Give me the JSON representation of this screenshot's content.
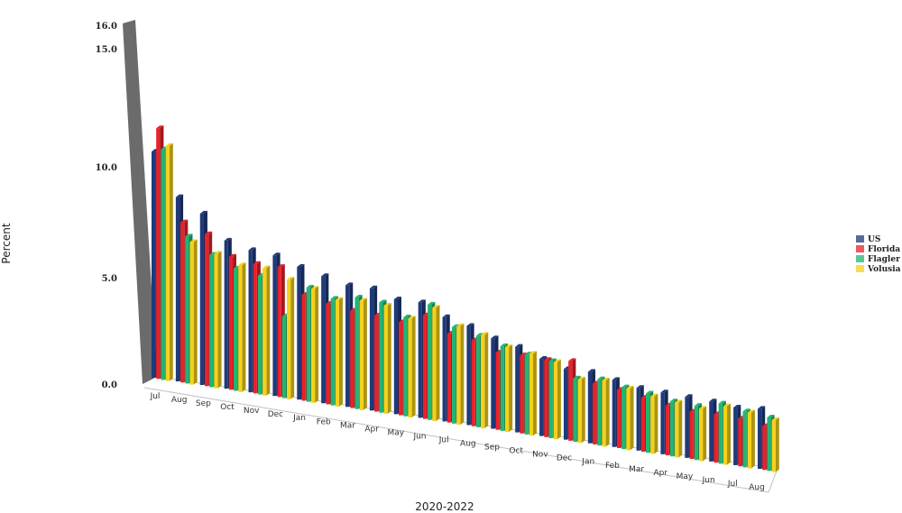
{
  "chart_data": {
    "type": "bar",
    "title": "",
    "xlabel": "2020-2022",
    "ylabel": "Percent",
    "ylim": [
      0,
      16
    ],
    "yticks": [
      "0.0",
      "5.0",
      "10.0",
      "15.0",
      "16.0"
    ],
    "categories": [
      "Jul",
      "Aug",
      "Sep",
      "Oct",
      "Nov",
      "Dec",
      "Jan",
      "Feb",
      "Mar",
      "Apr",
      "May",
      "Jun",
      "Jul",
      "Aug",
      "Sep",
      "Oct",
      "Nov",
      "Dec",
      "Jan",
      "Feb",
      "Mar",
      "Apr",
      "May",
      "Jun",
      "Jul",
      "Aug"
    ],
    "series": [
      {
        "name": "US",
        "color": "#1f3a7a",
        "values": [
          10.2,
          8.4,
          7.9,
          6.9,
          6.7,
          6.7,
          6.4,
          6.2,
          6.0,
          6.1,
          5.8,
          5.9,
          5.4,
          5.2,
          4.8,
          4.6,
          4.2,
          3.9,
          4.0,
          3.8,
          3.6,
          3.6,
          3.6,
          3.6,
          3.5,
          3.7
        ]
      },
      {
        "name": "Florida",
        "color": "#e8212a",
        "values": [
          11.3,
          7.3,
          7.0,
          6.2,
          6.1,
          6.2,
          5.1,
          4.9,
          4.8,
          4.8,
          4.7,
          5.3,
          4.6,
          4.5,
          4.1,
          4.2,
          4.2,
          4.4,
          3.4,
          3.3,
          3.1,
          2.9,
          2.8,
          2.9,
          2.9,
          2.7
        ]
      },
      {
        "name": "Flagler",
        "color": "#22b573",
        "values": [
          10.4,
          6.7,
          6.1,
          5.7,
          5.6,
          3.9,
          5.5,
          5.2,
          5.5,
          5.5,
          5.0,
          5.9,
          5.0,
          4.8,
          4.5,
          4.3,
          4.2,
          3.5,
          3.7,
          3.5,
          3.4,
          3.2,
          3.2,
          3.6,
          3.4,
          3.3
        ]
      },
      {
        "name": "Volusia",
        "color": "#f5d21a",
        "values": [
          10.6,
          6.5,
          6.2,
          5.9,
          6.0,
          5.7,
          5.5,
          5.2,
          5.4,
          5.4,
          5.0,
          5.8,
          5.1,
          4.9,
          4.5,
          4.4,
          4.2,
          3.5,
          3.7,
          3.5,
          3.3,
          3.2,
          3.1,
          3.5,
          3.4,
          3.2
        ]
      }
    ],
    "legend_position": "right",
    "grid": false
  }
}
